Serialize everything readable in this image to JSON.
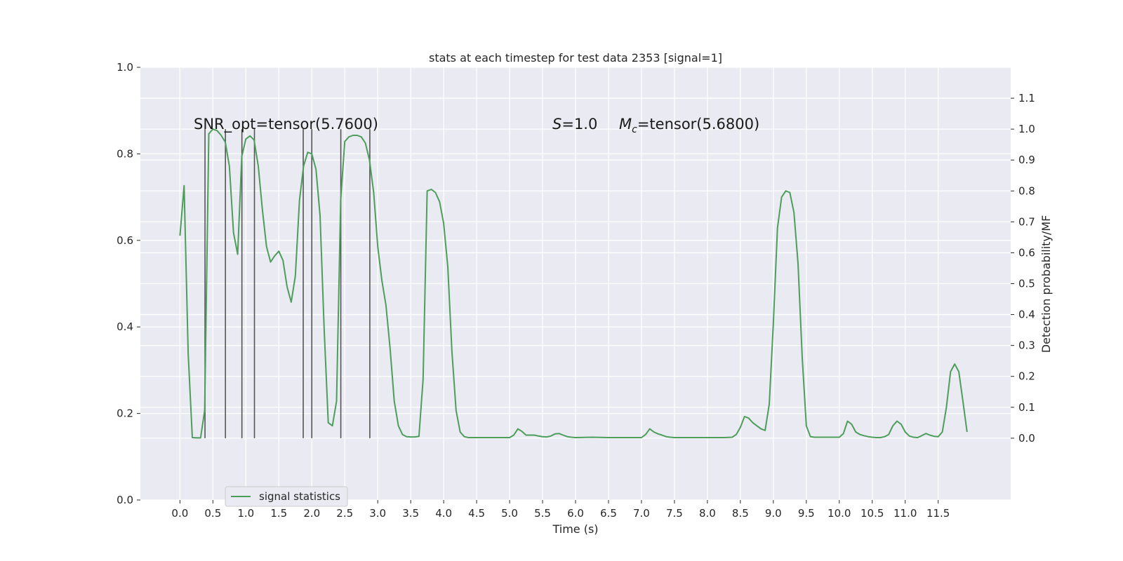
{
  "chart_data": {
    "type": "line",
    "title": "stats at each timestep for test data 2353 [signal=1]",
    "xlabel": "Time (s)",
    "ylabel_right": "Detection probability/MF",
    "xlim": [
      -0.6,
      12.6
    ],
    "ylim_left": [
      0.0,
      1.0
    ],
    "ylim_right": [
      -0.2,
      1.2
    ],
    "grid": true,
    "x_ticks": [
      0.0,
      0.5,
      1.0,
      1.5,
      2.0,
      2.5,
      3.0,
      3.5,
      4.0,
      4.5,
      5.0,
      5.5,
      6.0,
      6.5,
      7.0,
      7.5,
      8.0,
      8.5,
      9.0,
      9.5,
      10.0,
      10.5,
      11.0,
      11.5
    ],
    "x_tick_labels": [
      "0.0",
      "0.5",
      "1.0",
      "1.5",
      "2.0",
      "2.5",
      "3.0",
      "3.5",
      "4.0",
      "4.5",
      "5.0",
      "5.5",
      "6.0",
      "6.5",
      "7.0",
      "7.5",
      "8.0",
      "8.5",
      "9.0",
      "9.5",
      "10.0",
      "10.5",
      "11.0",
      "11.5"
    ],
    "y_left_ticks": [
      0.0,
      0.2,
      0.4,
      0.6,
      0.8,
      1.0
    ],
    "y_left_tick_labels": [
      "0.0",
      "0.2",
      "0.4",
      "0.6",
      "0.8",
      "1.0"
    ],
    "y_right_ticks": [
      0.0,
      0.1,
      0.2,
      0.3,
      0.4,
      0.5,
      0.6,
      0.7,
      0.8,
      0.9,
      1.0,
      1.1
    ],
    "y_right_tick_labels": [
      "0.0",
      "0.1",
      "0.2",
      "0.3",
      "0.4",
      "0.5",
      "0.6",
      "0.7",
      "0.8",
      "0.9",
      "1.0",
      "1.1"
    ],
    "annotations": {
      "snr": "SNR_opt=tensor(5.7600)",
      "s_prefix": "S",
      "s_value": "=1.0",
      "m_prefix": "M",
      "m_sub": "c",
      "m_value": "=tensor(5.6800)"
    },
    "vlines": {
      "x": [
        0.38,
        0.69,
        0.94,
        1.13,
        1.87,
        2.0,
        2.44,
        2.88
      ],
      "ymin": 0.0,
      "ymax": 1.0,
      "color": "#555555"
    },
    "legend": {
      "position": "lower-left",
      "entries": [
        "signal statistics"
      ]
    },
    "series": [
      {
        "name": "signal statistics",
        "color": "#4c9e5a",
        "axis": "right",
        "x": [
          0.0,
          0.063,
          0.125,
          0.188,
          0.25,
          0.313,
          0.375,
          0.438,
          0.5,
          0.563,
          0.625,
          0.688,
          0.75,
          0.813,
          0.875,
          0.938,
          1.0,
          1.063,
          1.125,
          1.188,
          1.25,
          1.313,
          1.375,
          1.438,
          1.5,
          1.563,
          1.625,
          1.688,
          1.75,
          1.813,
          1.875,
          1.938,
          2.0,
          2.063,
          2.125,
          2.188,
          2.25,
          2.313,
          2.375,
          2.438,
          2.5,
          2.563,
          2.625,
          2.688,
          2.75,
          2.813,
          2.875,
          2.938,
          3.0,
          3.063,
          3.125,
          3.188,
          3.25,
          3.313,
          3.375,
          3.438,
          3.5,
          3.563,
          3.625,
          3.688,
          3.75,
          3.813,
          3.875,
          3.938,
          4.0,
          4.063,
          4.125,
          4.188,
          4.25,
          4.313,
          4.375,
          4.5,
          5.0,
          5.063,
          5.125,
          5.188,
          5.25,
          5.313,
          5.375,
          5.438,
          5.5,
          5.563,
          5.625,
          5.688,
          5.75,
          5.813,
          5.875,
          5.938,
          6.0,
          6.25,
          6.5,
          7.0,
          7.063,
          7.125,
          7.188,
          7.25,
          7.313,
          7.375,
          7.438,
          7.5,
          7.75,
          8.25,
          8.375,
          8.438,
          8.5,
          8.563,
          8.625,
          8.688,
          8.75,
          8.813,
          8.875,
          8.938,
          9.0,
          9.063,
          9.125,
          9.188,
          9.25,
          9.313,
          9.375,
          9.438,
          9.5,
          9.563,
          9.625,
          9.75,
          10.0,
          10.063,
          10.125,
          10.188,
          10.25,
          10.313,
          10.375,
          10.438,
          10.5,
          10.563,
          10.625,
          10.688,
          10.75,
          10.813,
          10.875,
          10.938,
          11.0,
          11.063,
          11.125,
          11.188,
          11.25,
          11.313,
          11.375,
          11.438,
          11.5,
          11.563,
          11.625,
          11.688,
          11.75,
          11.813,
          11.875,
          11.938
        ],
        "y": [
          0.655,
          0.817,
          0.275,
          0.002,
          0.001,
          0.001,
          0.09,
          0.985,
          1.0,
          0.995,
          0.98,
          0.958,
          0.88,
          0.665,
          0.595,
          0.912,
          0.968,
          0.978,
          0.965,
          0.88,
          0.74,
          0.62,
          0.57,
          0.59,
          0.605,
          0.575,
          0.49,
          0.44,
          0.525,
          0.77,
          0.88,
          0.925,
          0.92,
          0.87,
          0.72,
          0.35,
          0.05,
          0.04,
          0.12,
          0.77,
          0.96,
          0.975,
          0.98,
          0.98,
          0.975,
          0.955,
          0.9,
          0.795,
          0.62,
          0.51,
          0.43,
          0.29,
          0.12,
          0.04,
          0.012,
          0.005,
          0.004,
          0.004,
          0.006,
          0.19,
          0.8,
          0.805,
          0.795,
          0.765,
          0.695,
          0.555,
          0.28,
          0.09,
          0.02,
          0.005,
          0.002,
          0.002,
          0.002,
          0.01,
          0.03,
          0.022,
          0.01,
          0.01,
          0.01,
          0.007,
          0.005,
          0.004,
          0.007,
          0.014,
          0.015,
          0.01,
          0.005,
          0.003,
          0.002,
          0.003,
          0.002,
          0.002,
          0.012,
          0.03,
          0.02,
          0.014,
          0.01,
          0.005,
          0.003,
          0.002,
          0.002,
          0.002,
          0.003,
          0.012,
          0.035,
          0.07,
          0.065,
          0.05,
          0.04,
          0.03,
          0.025,
          0.11,
          0.37,
          0.68,
          0.78,
          0.8,
          0.795,
          0.73,
          0.565,
          0.26,
          0.04,
          0.005,
          0.003,
          0.003,
          0.003,
          0.015,
          0.055,
          0.045,
          0.02,
          0.012,
          0.008,
          0.005,
          0.003,
          0.002,
          0.002,
          0.005,
          0.012,
          0.04,
          0.055,
          0.045,
          0.02,
          0.007,
          0.003,
          0.002,
          0.008,
          0.015,
          0.01,
          0.006,
          0.005,
          0.02,
          0.1,
          0.215,
          0.24,
          0.215,
          0.12,
          0.02
        ]
      }
    ]
  }
}
